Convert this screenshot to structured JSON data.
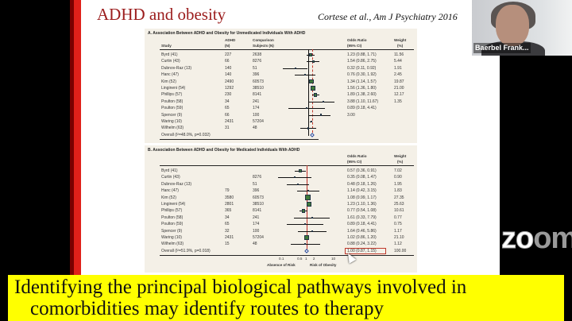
{
  "slide": {
    "title": "ADHD and obesity",
    "banner_line1": "Identifying the principal biological pathways involved in",
    "banner_line2": "comorbidities may identify routes to therapy",
    "citation": "Cortese et al., Am J Psychiatry 2016"
  },
  "video": {
    "participant_name": "Baerbel Frank...",
    "watermark": "zoom"
  },
  "panelA": {
    "title": "A. Association Between ADHD and Obesity for Unmedicated Individuals With ADHD",
    "headers": {
      "study": "Study",
      "adhd": "ADHD",
      "adhd_n": "(N)",
      "comp": "Comparison",
      "comp_n": "Subjects (N)",
      "or": "Odds Ratio",
      "or_ci": "(95% CI)",
      "weight": "Weight",
      "weight_pct": "(%)"
    },
    "rows": [
      {
        "study": "Byrd (41)",
        "adhd": "227",
        "comp": "2638",
        "or_text": "1.23 (0.88, 1.71)",
        "weight": "11.56",
        "or": 1.23,
        "lo": 0.88,
        "hi": 1.71
      },
      {
        "study": "Curtin (43)",
        "adhd": "66",
        "comp": "8276",
        "or_text": "1.54 (0.86, 2.75)",
        "weight": "5.44",
        "or": 1.54,
        "lo": 0.86,
        "hi": 2.75
      },
      {
        "study": "Dubnov-Raz (13)",
        "adhd": "140",
        "comp": "51",
        "or_text": "0.32 (0.11, 0.92)",
        "weight": "1.91",
        "or": 0.32,
        "lo": 0.11,
        "hi": 0.92
      },
      {
        "study": "Hanc (47)",
        "adhd": "140",
        "comp": "396",
        "or_text": "0.76 (0.30, 1.92)",
        "weight": "2.45",
        "or": 0.76,
        "lo": 0.3,
        "hi": 1.92
      },
      {
        "study": "Kim (52)",
        "adhd": "2490",
        "comp": "60573",
        "or_text": "1.34 (1.14, 1.57)",
        "weight": "19.87",
        "or": 1.34,
        "lo": 1.14,
        "hi": 1.57
      },
      {
        "study": "Lingineni (54)",
        "adhd": "1292",
        "comp": "38510",
        "or_text": "1.56 (1.36, 1.80)",
        "weight": "21.00",
        "or": 1.56,
        "lo": 1.36,
        "hi": 1.8
      },
      {
        "study": "Phillips (57)",
        "adhd": "230",
        "comp": "8141",
        "or_text": "1.89 (1.38, 2.60)",
        "weight": "12.17",
        "or": 1.89,
        "lo": 1.38,
        "hi": 2.6
      },
      {
        "study": "Poulton (58)",
        "adhd": "34",
        "comp": "241",
        "or_text": "3.88 (1.10, 11.67)",
        "weight": "1.35",
        "or": 3.88,
        "lo": 1.1,
        "hi": 11.67
      },
      {
        "study": "Poulton (59)",
        "adhd": "65",
        "comp": "174",
        "or_text": "0.89 (0.18, 4.41)",
        "weight": "",
        "or": 0.89,
        "lo": 0.18,
        "hi": 4.41
      },
      {
        "study": "Spencer (9)",
        "adhd": "66",
        "comp": "100",
        "or_text": "3.00",
        "weight": "",
        "or": 3.0,
        "lo": 1.1,
        "hi": 7.0
      },
      {
        "study": "Waring (10)",
        "adhd": "2431",
        "comp": "57204",
        "or_text": "",
        "weight": "",
        "or": 1.3,
        "lo": 1.15,
        "hi": 1.45
      },
      {
        "study": "Wilhelm (63)",
        "adhd": "31",
        "comp": "48",
        "or_text": "",
        "weight": "",
        "or": 1.0,
        "lo": 0.5,
        "hi": 2.0
      }
    ],
    "overall": {
      "label": "Overall  (I²=48.0%, p=0.032)",
      "or_text": "",
      "weight": "",
      "or": 1.4
    }
  },
  "panelB": {
    "title": "B. Association Between ADHD and Obesity for Medicated Individuals With ADHD",
    "headers": {
      "or": "Odds Ratio",
      "or_ci": "(95% CI)",
      "weight": "Weight",
      "weight_pct": "(%)"
    },
    "rows": [
      {
        "study": "Byrd (41)",
        "adhd": "",
        "comp": "",
        "or_text": "0.57 (0.36, 0.91)",
        "weight": "7.02",
        "or": 0.57,
        "lo": 0.36,
        "hi": 0.91
      },
      {
        "study": "Curtin (43)",
        "adhd": "",
        "comp": "8276",
        "or_text": "0.35 (0.08, 1.47)",
        "weight": "0.90",
        "or": 0.35,
        "lo": 0.08,
        "hi": 1.47
      },
      {
        "study": "Dubnov-Raz (13)",
        "adhd": "",
        "comp": "51",
        "or_text": "0.48 (0.18, 1.26)",
        "weight": "1.95",
        "or": 0.48,
        "lo": 0.18,
        "hi": 1.26
      },
      {
        "study": "Hanc (47)",
        "adhd": "79",
        "comp": "396",
        "or_text": "1.14 (0.42, 3.15)",
        "weight": "1.83",
        "or": 1.14,
        "lo": 0.42,
        "hi": 3.15
      },
      {
        "study": "Kim (52)",
        "adhd": "3580",
        "comp": "60573",
        "or_text": "1.08 (0.99, 1.17)",
        "weight": "27.35",
        "or": 1.08,
        "lo": 0.99,
        "hi": 1.17
      },
      {
        "study": "Lingineni (54)",
        "adhd": "2801",
        "comp": "38510",
        "or_text": "1.23 (1.10, 1.36)",
        "weight": "25.63",
        "or": 1.23,
        "lo": 1.1,
        "hi": 1.36
      },
      {
        "study": "Phillips (57)",
        "adhd": "365",
        "comp": "8141",
        "or_text": "0.77 (0.54, 1.08)",
        "weight": "10.61",
        "or": 0.77,
        "lo": 0.54,
        "hi": 1.08
      },
      {
        "study": "Poulton (58)",
        "adhd": "34",
        "comp": "241",
        "or_text": "1.61 (0.33, 7.79)",
        "weight": "0.77",
        "or": 1.61,
        "lo": 0.33,
        "hi": 7.79
      },
      {
        "study": "Poulton (59)",
        "adhd": "65",
        "comp": "174",
        "or_text": "0.89 (0.18, 4.41)",
        "weight": "0.75",
        "or": 0.89,
        "lo": 0.18,
        "hi": 4.41
      },
      {
        "study": "Spencer (9)",
        "adhd": "32",
        "comp": "100",
        "or_text": "1.64 (0.46, 5.86)",
        "weight": "1.17",
        "or": 1.64,
        "lo": 0.46,
        "hi": 5.86
      },
      {
        "study": "Waring (10)",
        "adhd": "2431",
        "comp": "57204",
        "or_text": "1.02 (0.86, 1.20)",
        "weight": "21.10",
        "or": 1.02,
        "lo": 0.86,
        "hi": 1.2
      },
      {
        "study": "Wilhelm (63)",
        "adhd": "15",
        "comp": "48",
        "or_text": "0.88 (0.24, 3.22)",
        "weight": "1.12",
        "or": 0.88,
        "lo": 0.24,
        "hi": 3.22
      }
    ],
    "overall": {
      "label": "Overall  (I²=51.9%, p=0.018)",
      "or_text": "1.00 (0.87, 1.15)",
      "weight": "100.00",
      "or": 1.0
    },
    "axis": {
      "ticks": [
        "0.1",
        "0.5",
        "1",
        "2",
        "10"
      ],
      "tick_values": [
        0.1,
        0.5,
        1,
        2,
        10
      ],
      "left_label": "Absence of Risk",
      "right_label": "Risk of Obesity"
    }
  }
}
